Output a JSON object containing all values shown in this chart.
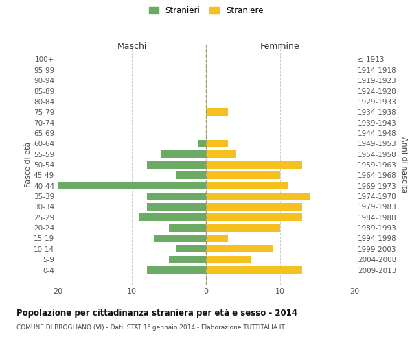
{
  "age_groups": [
    "100+",
    "95-99",
    "90-94",
    "85-89",
    "80-84",
    "75-79",
    "70-74",
    "65-69",
    "60-64",
    "55-59",
    "50-54",
    "45-49",
    "40-44",
    "35-39",
    "30-34",
    "25-29",
    "20-24",
    "15-19",
    "10-14",
    "5-9",
    "0-4"
  ],
  "birth_years": [
    "≤ 1913",
    "1914-1918",
    "1919-1923",
    "1924-1928",
    "1929-1933",
    "1934-1938",
    "1939-1943",
    "1944-1948",
    "1949-1953",
    "1954-1958",
    "1959-1963",
    "1964-1968",
    "1969-1973",
    "1974-1978",
    "1979-1983",
    "1984-1988",
    "1989-1993",
    "1994-1998",
    "1999-2003",
    "2004-2008",
    "2009-2013"
  ],
  "maschi": [
    0,
    0,
    0,
    0,
    0,
    0,
    0,
    0,
    1,
    6,
    8,
    4,
    20,
    8,
    8,
    9,
    5,
    7,
    4,
    5,
    8
  ],
  "femmine": [
    0,
    0,
    0,
    0,
    0,
    3,
    0,
    0,
    3,
    4,
    13,
    10,
    11,
    14,
    13,
    13,
    10,
    3,
    9,
    6,
    13
  ],
  "color_maschi": "#6aaa64",
  "color_femmine": "#f5c020",
  "title_main": "Popolazione per cittadinanza straniera per età e sesso - 2014",
  "title_sub": "COMUNE DI BROGLIANO (VI) - Dati ISTAT 1° gennaio 2014 - Elaborazione TUTTITALIA.IT",
  "xlabel_left": "Maschi",
  "xlabel_right": "Femmine",
  "ylabel_left": "Fasce di età",
  "ylabel_right": "Anni di nascita",
  "legend_maschi": "Stranieri",
  "legend_femmine": "Straniere",
  "xlim": 20,
  "bg_color": "#ffffff",
  "grid_color": "#cccccc",
  "bar_height": 0.72
}
